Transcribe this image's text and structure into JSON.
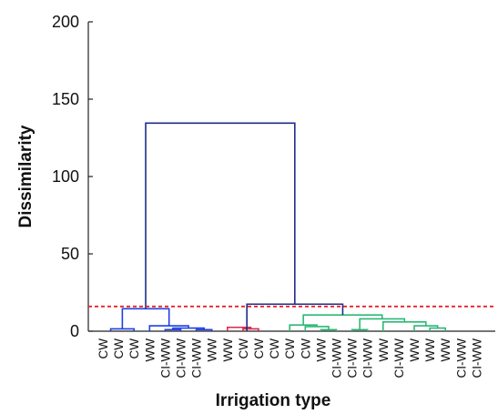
{
  "chart_data": {
    "type": "dendrogram",
    "xlabel": "Irrigation type",
    "ylabel": "Dissimilarity",
    "ylim": [
      0,
      200
    ],
    "yticks": [
      0,
      50,
      100,
      150,
      200
    ],
    "leaf_labels": [
      "CW",
      "CW",
      "CW",
      "WW",
      "CI-WW",
      "CI-WW",
      "CI-WW",
      "WW",
      "WW",
      "CW",
      "CW",
      "CW",
      "CW",
      "CW",
      "WW",
      "CI-WW",
      "CI-WW",
      "CI-WW",
      "WW",
      "CI-WW",
      "WW",
      "WW",
      "WW",
      "CI-WW",
      "CI-WW"
    ],
    "cutoff": 16,
    "cutoff_color": "#e8222a",
    "cluster_colors": {
      "upper": "#1f2d8a",
      "cluster1": "#2040e0",
      "cluster2": "#d8284a",
      "cluster3": "#2cb878"
    },
    "merges": [
      {
        "x1": 0.5,
        "x2": 2.0,
        "h": 1.5,
        "color": "cluster1"
      },
      {
        "x1": 4.0,
        "x2": 5.0,
        "h": 1.0,
        "color": "cluster1"
      },
      {
        "x1": 6.0,
        "x2": 7.0,
        "h": 1.0,
        "color": "cluster1"
      },
      {
        "x1": 4.5,
        "x2": 6.5,
        "h": 2.0,
        "color": "cluster1"
      },
      {
        "x1": 3.0,
        "x2": 5.5,
        "h": 3.5,
        "color": "cluster1"
      },
      {
        "x1": 1.25,
        "x2": 4.25,
        "h": 14.5,
        "color": "cluster1"
      },
      {
        "x1": 9.0,
        "x2": 10.0,
        "h": 1.5,
        "color": "cluster2"
      },
      {
        "x1": 8.0,
        "x2": 9.5,
        "h": 2.5,
        "color": "cluster2"
      },
      {
        "x1": 14.0,
        "x2": 15.0,
        "h": 1.0,
        "color": "cluster3"
      },
      {
        "x1": 13.0,
        "x2": 14.5,
        "h": 3.0,
        "color": "cluster3"
      },
      {
        "x1": 12.0,
        "x2": 13.75,
        "h": 4.0,
        "color": "cluster3"
      },
      {
        "x1": 16.0,
        "x2": 17.0,
        "h": 1.0,
        "color": "cluster3"
      },
      {
        "x1": 21.0,
        "x2": 22.0,
        "h": 2.0,
        "color": "cluster3"
      },
      {
        "x1": 20.0,
        "x2": 21.5,
        "h": 3.5,
        "color": "cluster3"
      },
      {
        "x1": 18.0,
        "x2": 20.75,
        "h": 6.0,
        "color": "cluster3"
      },
      {
        "x1": 16.5,
        "x2": 19.375,
        "h": 8.0,
        "color": "cluster3"
      },
      {
        "x1": 12.875,
        "x2": 17.9375,
        "h": 10.5,
        "color": "cluster3"
      },
      {
        "x1": 9.25,
        "x2": 15.40625,
        "h": 17.5,
        "color": "upper"
      },
      {
        "x1": 2.75,
        "x2": 12.328125,
        "h": 134.5,
        "color": "upper"
      }
    ]
  }
}
